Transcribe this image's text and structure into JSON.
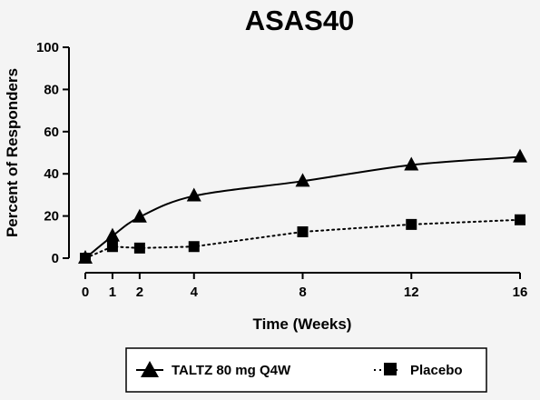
{
  "chart_data": {
    "type": "line",
    "title": "ASAS40",
    "xlabel": "Time (Weeks)",
    "ylabel": "Percent of Responders",
    "x": [
      0,
      1,
      2,
      4,
      8,
      12,
      16
    ],
    "xlim": [
      0,
      16
    ],
    "ylim": [
      0,
      100
    ],
    "x_ticks": [
      0,
      1,
      2,
      4,
      8,
      12,
      16
    ],
    "y_ticks": [
      0,
      20,
      40,
      60,
      80,
      100
    ],
    "grid": false,
    "legend_position": "bottom",
    "series": [
      {
        "name": "TALTZ 80 mg Q4W",
        "values": [
          0,
          10.5,
          19.5,
          29.5,
          36.5,
          44.2,
          48.0
        ],
        "marker": "triangle",
        "line_style": "solid",
        "color": "#000000"
      },
      {
        "name": "Placebo",
        "values": [
          0,
          5.5,
          4.8,
          5.5,
          12.5,
          16.0,
          18.2
        ],
        "marker": "square",
        "line_style": "dotted",
        "color": "#000000"
      }
    ]
  }
}
